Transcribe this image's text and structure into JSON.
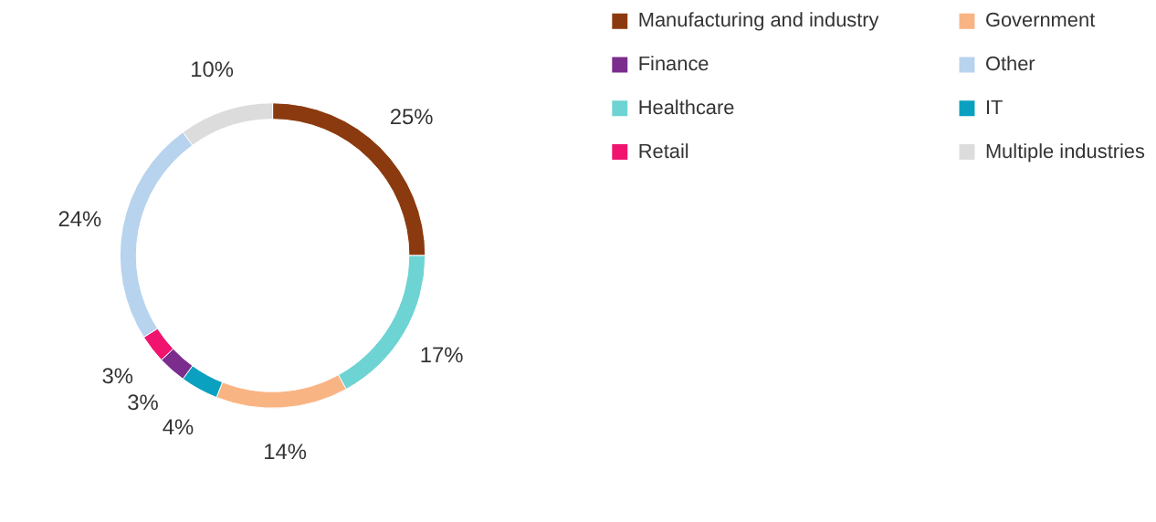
{
  "chart_data": {
    "type": "donut",
    "categories": [
      "Manufacturing and industry",
      "Healthcare",
      "Government",
      "IT",
      "Finance",
      "Retail",
      "Other",
      "Multiple industries"
    ],
    "values": [
      25,
      17,
      14,
      4,
      3,
      3,
      24,
      10
    ],
    "colors": [
      "#8b3a0f",
      "#6ed3d3",
      "#f9b483",
      "#0aa0c0",
      "#7b2d8e",
      "#f0146e",
      "#b7d3ee",
      "#dcdcdc"
    ],
    "value_labels": [
      "25%",
      "17%",
      "14%",
      "4%",
      "3%",
      "3%",
      "24%",
      "10%"
    ],
    "legend": "right"
  }
}
